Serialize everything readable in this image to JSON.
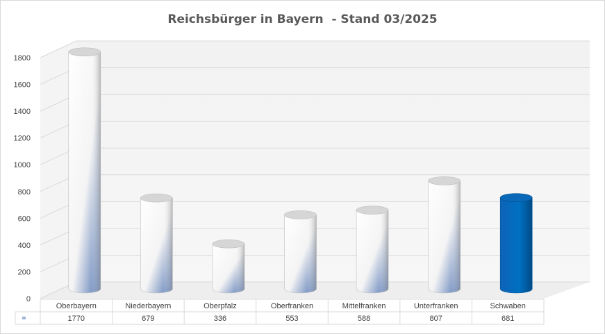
{
  "chart_data": {
    "type": "bar",
    "title": "Reichsbürger in Bayern  - Stand 03/2025",
    "categories": [
      "Oberbayern",
      "Niederbayern",
      "Oberpfalz",
      "Oberfranken",
      "Mittelfranken",
      "Unterfranken",
      "Schwaben"
    ],
    "values": [
      1770,
      679,
      336,
      553,
      588,
      807,
      681
    ],
    "highlight": "Schwaben",
    "ylim": [
      0,
      1800
    ],
    "yticks": [
      0,
      200,
      400,
      600,
      800,
      1000,
      1200,
      1400,
      1600,
      1800
    ],
    "grid": true,
    "data_table": true,
    "bar_shape": "cylinder",
    "colors": {
      "bar": "#ffffff",
      "bar_shade": "#4a6fb0",
      "highlight": "#0070c0",
      "grid": "#d9d9d9",
      "text": "#404040",
      "title": "#595959"
    }
  }
}
